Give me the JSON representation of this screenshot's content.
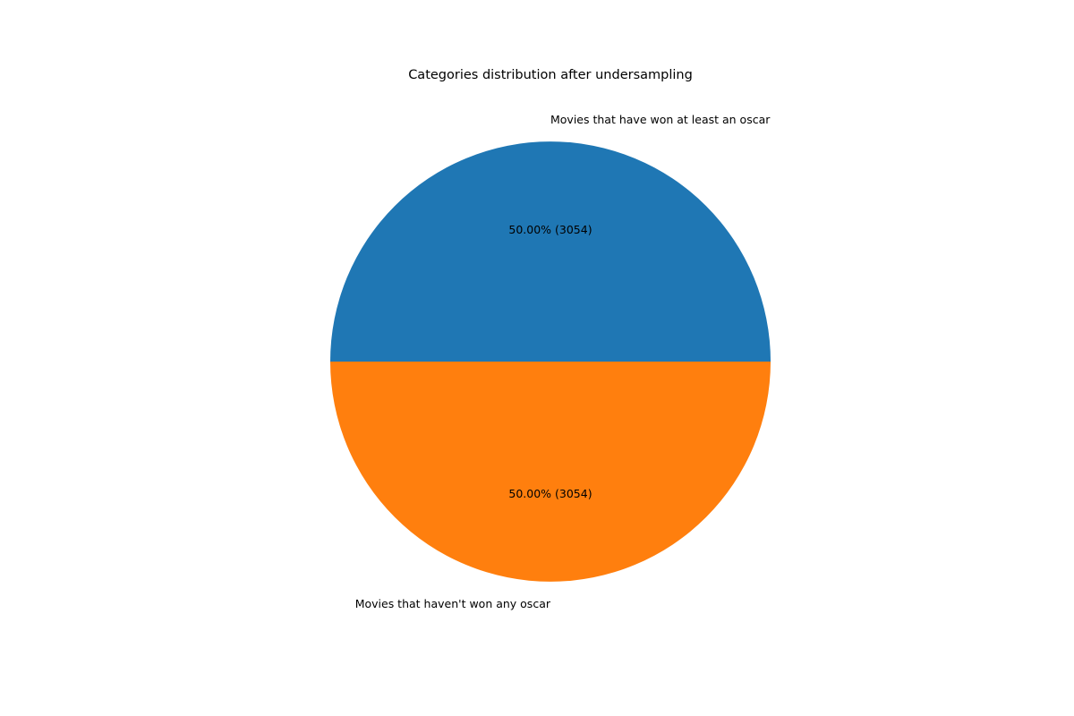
{
  "chart_data": {
    "type": "pie",
    "title": "Categories distribution after undersampling",
    "slices": [
      {
        "label": "Movies that have won at least an oscar",
        "value": 3054,
        "percent_label": "50.00%  (3054)",
        "color": "#1f77b4"
      },
      {
        "label": "Movies that haven't won any oscar",
        "value": 3054,
        "percent_label": "50.00%  (3054)",
        "color": "#ff7f0e"
      }
    ],
    "start_angle_deg": 0,
    "direction": "counterclockwise"
  }
}
